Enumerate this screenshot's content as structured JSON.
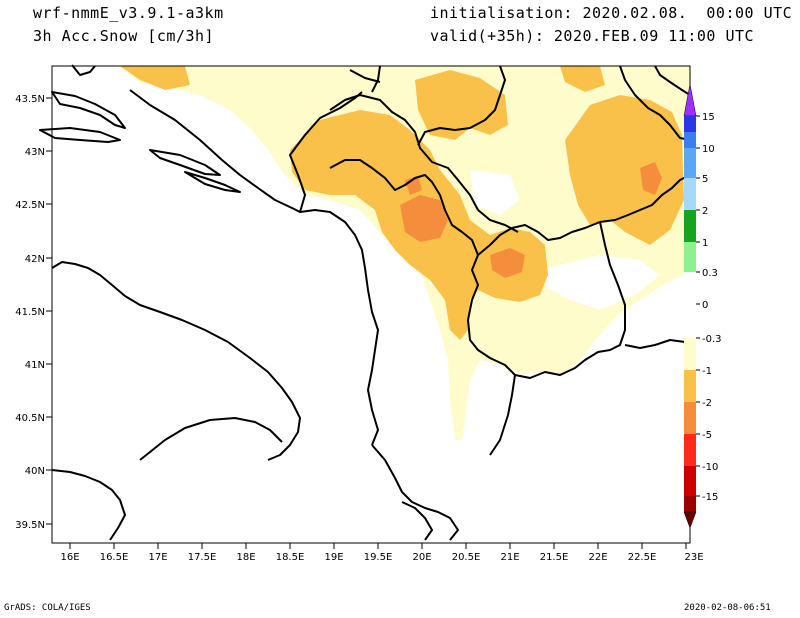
{
  "header": {
    "model": "wrf-nmmE_v3.9.1-a3km",
    "field": "3h Acc.Snow [cm/3h]",
    "init": "initialisation: 2020.02.08.  00:00 UTC",
    "valid": "valid(+35h): 2020.FEB.09 11:00 UTC"
  },
  "footer": {
    "left": "GrADS: COLA/IGES",
    "right": "2020-02-08-06:51"
  },
  "map": {
    "lat_labels": [
      "43.5N",
      "43N",
      "42.5N",
      "42N",
      "41.5N",
      "41N",
      "40.5N",
      "40N",
      "39.5N"
    ],
    "lon_labels": [
      "16E",
      "16.5E",
      "17E",
      "17.5E",
      "18E",
      "18.5E",
      "19E",
      "19.5E",
      "20E",
      "20.5E",
      "21E",
      "21.5E",
      "22E",
      "22.5E",
      "23E"
    ],
    "snow_colors": {
      "light": "#fffccc",
      "moderate": "#f9c14a",
      "heavy": "#f58e3c"
    }
  },
  "legend": {
    "labels": [
      "15",
      "10",
      "5",
      "2",
      "1",
      "0.3",
      "0",
      "-0.3",
      "-1",
      "-2",
      "-5",
      "-10",
      "-15"
    ],
    "colors": [
      "#9b30ff",
      "#2b36e6",
      "#3c7df0",
      "#5aa8f5",
      "#a6d8fb",
      "#17a31f",
      "#3ccf3c",
      "#8ff08f",
      "#ffffff",
      "#ffffff",
      "#fffccc",
      "#f9c14a",
      "#f58e3c",
      "#ff2a1a",
      "#cc0000",
      "#9a0000",
      "#660000"
    ]
  }
}
